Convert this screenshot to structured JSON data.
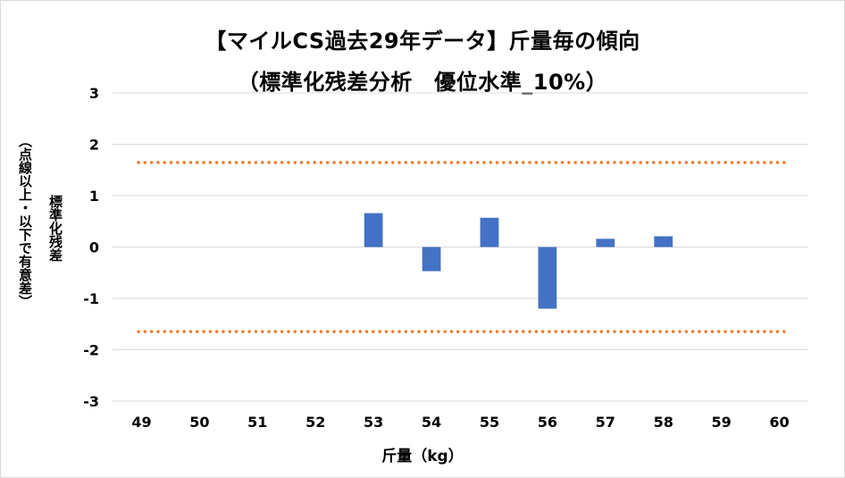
{
  "chart_data": {
    "type": "bar",
    "title": "【マイルCS過去29年データ】斤量毎の傾向",
    "subtitle": "（標準化残差分析　優位水準_10%）",
    "ylabel": "標準化残差",
    "ylabel_sub": "（点線以上・以下で有意差）",
    "xlabel": "斤量（kg）",
    "categories": [
      "49",
      "50",
      "51",
      "52",
      "53",
      "54",
      "55",
      "56",
      "57",
      "58",
      "59",
      "60"
    ],
    "values": [
      0,
      0,
      0,
      0,
      0.66,
      -0.47,
      0.57,
      -1.2,
      0.16,
      0.21,
      0,
      0
    ],
    "ylim": [
      -3,
      3
    ],
    "yticks": [
      3,
      2,
      1,
      0,
      -1,
      -2,
      -3
    ],
    "ytick_labels": [
      "3",
      "2",
      "1",
      "0",
      "-1",
      "-2",
      "-3"
    ],
    "grid": true,
    "legend": "none",
    "threshold_lines": [
      1.645,
      -1.645
    ],
    "bar_color": "#4472C4",
    "threshold_color": "#ED7D31",
    "grid_color": "#D9D9D9"
  }
}
